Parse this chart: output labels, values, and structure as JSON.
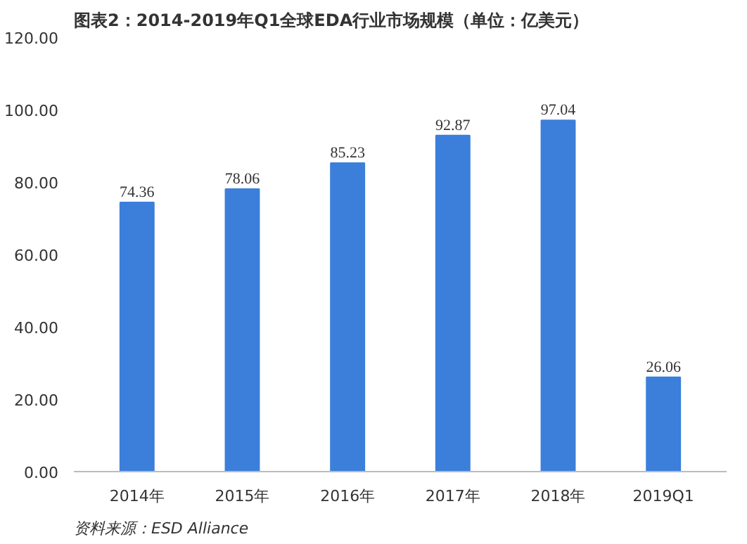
{
  "chart_data": {
    "type": "bar",
    "title": "图表2：2014-2019年Q1全球EDA行业市场规模（单位：亿美元）",
    "categories": [
      "2014年",
      "2015年",
      "2016年",
      "2017年",
      "2018年",
      "2019Q1"
    ],
    "values": [
      74.36,
      78.06,
      85.23,
      92.87,
      97.04,
      26.06
    ],
    "value_labels": [
      "74.36",
      "78.06",
      "85.23",
      "92.87",
      "97.04",
      "26.06"
    ],
    "color": "#3b7fdb",
    "ylim": [
      0,
      120
    ],
    "yticks": [
      {
        "value": 0,
        "label": "0.00"
      },
      {
        "value": 20,
        "label": "20.00"
      },
      {
        "value": 40,
        "label": "40.00"
      },
      {
        "value": 60,
        "label": "60.00"
      },
      {
        "value": 80,
        "label": "80.00"
      },
      {
        "value": 100,
        "label": "100.00"
      },
      {
        "value": 120,
        "label": "120.00"
      }
    ],
    "grid": false,
    "annotations": [
      "资料来源：ESD Alliance"
    ]
  }
}
